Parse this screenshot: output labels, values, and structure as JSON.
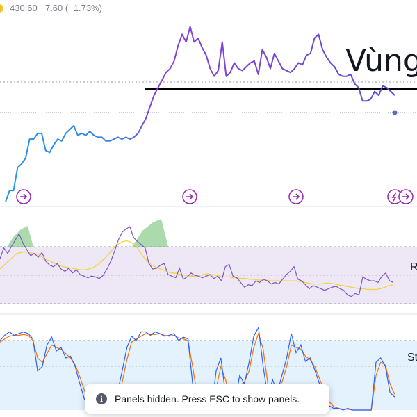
{
  "header": {
    "price_text": "430.60  −7.60 (−1.73%)",
    "coin_icon": "bitcoin-icon"
  },
  "annotation": {
    "zone_text": "Vùng"
  },
  "panes": {
    "rsi_label": "R",
    "stoch_label": "St"
  },
  "toast": {
    "message": "Panels hidden. Press ESC to show panels.",
    "icon": "info-icon"
  },
  "colors": {
    "line_start": "#2196f3",
    "line_end": "#9c27b0",
    "rsi": "#7e57c2",
    "rsi_ma": "#f5d33b",
    "rsi_band": "#ede7f6",
    "stoch_k": "#2962ff",
    "stoch_d": "#ff6d00",
    "stoch_band": "#e3f2fd",
    "overbought_fill": "#66bb6a",
    "zone_line": "#000000",
    "marker": "#9c27b0"
  },
  "chart_data": [
    {
      "type": "line",
      "title": "",
      "series": [
        {
          "values": [
            0.02,
            0.08,
            0.08,
            0.2,
            0.22,
            0.25,
            0.35,
            0.35,
            0.38,
            0.38,
            0.29,
            0.28,
            0.32,
            0.35,
            0.34,
            0.38,
            0.4,
            0.42,
            0.37,
            0.38,
            0.37,
            0.39,
            0.37,
            0.36,
            0.36,
            0.34,
            0.34,
            0.35,
            0.36,
            0.35,
            0.36,
            0.35,
            0.36,
            0.38,
            0.42,
            0.46,
            0.52,
            0.58,
            0.62,
            0.66,
            0.7,
            0.72,
            0.76,
            0.84,
            0.9,
            0.86,
            0.94,
            0.86,
            0.88,
            0.83,
            0.79,
            0.72,
            0.68,
            0.71,
            0.86,
            0.68,
            0.7,
            0.75,
            0.72,
            0.71,
            0.73,
            0.75,
            0.76,
            0.69,
            0.82,
            0.78,
            0.72,
            0.8,
            0.76,
            0.72,
            0.71,
            0.7,
            0.72,
            0.75,
            0.74,
            0.79,
            0.8,
            0.88,
            0.9,
            0.82,
            0.78,
            0.75,
            0.73,
            0.69,
            0.68,
            0.68,
            0.69,
            0.64,
            0.62,
            0.55,
            0.55,
            0.56,
            0.6,
            0.58,
            0.63,
            0.62,
            0.6,
            0.58
          ]
        }
      ],
      "markers": 5
    },
    {
      "type": "line",
      "series": [
        {
          "values": [
            0.58,
            0.72,
            0.65,
            0.74,
            0.82,
            0.9,
            0.78,
            0.7,
            0.62,
            0.65,
            0.6,
            0.66,
            0.55,
            0.5,
            0.48,
            0.52,
            0.45,
            0.42,
            0.46,
            0.4,
            0.44,
            0.38,
            0.36,
            0.34,
            0.36,
            0.35,
            0.33,
            0.37,
            0.45,
            0.55,
            0.68,
            0.82,
            0.92,
            0.96,
            0.99,
            0.85,
            0.8,
            0.76,
            0.72,
            0.52,
            0.45,
            0.46,
            0.5,
            0.52,
            0.38,
            0.36,
            0.34,
            0.46,
            0.32,
            0.35,
            0.4,
            0.37,
            0.36,
            0.34,
            0.36,
            0.38,
            0.33,
            0.36,
            0.3,
            0.48,
            0.51,
            0.36,
            0.34,
            0.28,
            0.22,
            0.25,
            0.24,
            0.3,
            0.28,
            0.32,
            0.3,
            0.26,
            0.28,
            0.26,
            0.32,
            0.38,
            0.42,
            0.48,
            0.32,
            0.3,
            0.25,
            0.2,
            0.24,
            0.22,
            0.2,
            0.18,
            0.2,
            0.22,
            0.23,
            0.2,
            0.18,
            0.12,
            0.1,
            0.14,
            0.12,
            0.35,
            0.32,
            0.3,
            0.3,
            0.28,
            0.36,
            0.4,
            0.3,
            0.28
          ]
        },
        {
          "values": [
            0.45,
            0.5,
            0.55,
            0.6,
            0.65,
            0.66,
            0.67,
            0.66,
            0.65,
            0.64,
            0.6,
            0.57,
            0.55,
            0.52,
            0.5,
            0.48,
            0.47,
            0.46,
            0.45,
            0.44,
            0.44,
            0.45,
            0.47,
            0.5,
            0.55,
            0.6,
            0.66,
            0.72,
            0.77,
            0.8,
            0.81,
            0.79,
            0.75,
            0.68,
            0.6,
            0.54,
            0.5,
            0.47,
            0.45,
            0.43,
            0.41,
            0.4,
            0.39,
            0.38,
            0.37,
            0.36,
            0.36,
            0.37,
            0.38,
            0.39,
            0.38,
            0.37,
            0.36,
            0.35,
            0.35,
            0.34,
            0.34,
            0.33,
            0.33,
            0.32,
            0.32,
            0.31,
            0.31,
            0.31,
            0.3,
            0.3,
            0.3,
            0.3,
            0.3,
            0.3,
            0.3,
            0.29,
            0.28,
            0.27,
            0.26,
            0.26,
            0.26,
            0.27,
            0.27,
            0.26,
            0.25,
            0.24,
            0.23,
            0.22,
            0.21,
            0.2,
            0.2,
            0.19,
            0.19,
            0.19,
            0.2,
            0.22,
            0.24,
            0.25
          ]
        }
      ],
      "band": [
        30,
        70
      ]
    },
    {
      "type": "line",
      "series": [
        {
          "values": [
            0.8,
            0.86,
            0.9,
            0.86,
            0.88,
            0.9,
            0.88,
            0.82,
            0.45,
            0.5,
            0.75,
            0.84,
            0.68,
            0.72,
            0.6,
            0.62,
            0.5,
            0.3,
            0.12,
            0.05,
            0.0,
            0.0,
            0.02,
            0.04,
            0.08,
            0.2,
            0.45,
            0.72,
            0.85,
            0.8,
            0.9,
            0.9,
            0.86,
            0.9,
            0.88,
            0.85,
            0.86,
            0.88,
            0.8,
            0.84,
            0.82,
            0.3,
            0.02,
            0.05,
            0.0,
            0.0,
            0.45,
            0.6,
            0.18,
            0.05,
            0.1,
            0.4,
            0.3,
            0.55,
            0.85,
            0.95,
            0.5,
            0.15,
            0.35,
            0.2,
            0.4,
            0.6,
            0.88,
            0.66,
            0.75,
            0.56,
            0.6,
            0.46,
            0.3,
            0.18,
            0.05,
            0.02,
            0.02,
            0.0,
            0.02,
            0.0,
            0.0,
            0.0,
            0.0,
            0.0,
            0.55,
            0.6,
            0.5,
            0.2,
            0.15
          ]
        },
        {
          "values": [
            0.78,
            0.82,
            0.85,
            0.86,
            0.86,
            0.87,
            0.86,
            0.8,
            0.6,
            0.55,
            0.65,
            0.75,
            0.72,
            0.7,
            0.65,
            0.6,
            0.52,
            0.38,
            0.22,
            0.1,
            0.03,
            0.01,
            0.02,
            0.03,
            0.06,
            0.15,
            0.32,
            0.58,
            0.78,
            0.82,
            0.85,
            0.88,
            0.87,
            0.87,
            0.88,
            0.86,
            0.85,
            0.86,
            0.83,
            0.82,
            0.8,
            0.5,
            0.15,
            0.05,
            0.02,
            0.01,
            0.25,
            0.5,
            0.35,
            0.12,
            0.08,
            0.28,
            0.32,
            0.45,
            0.72,
            0.88,
            0.7,
            0.3,
            0.28,
            0.25,
            0.32,
            0.5,
            0.75,
            0.72,
            0.7,
            0.62,
            0.58,
            0.5,
            0.36,
            0.22,
            0.1,
            0.04,
            0.02,
            0.01,
            0.01,
            0.0,
            0.0,
            0.0,
            0.0,
            0.0,
            0.4,
            0.55,
            0.52,
            0.3,
            0.18
          ]
        }
      ],
      "band": [
        20,
        80
      ]
    }
  ]
}
